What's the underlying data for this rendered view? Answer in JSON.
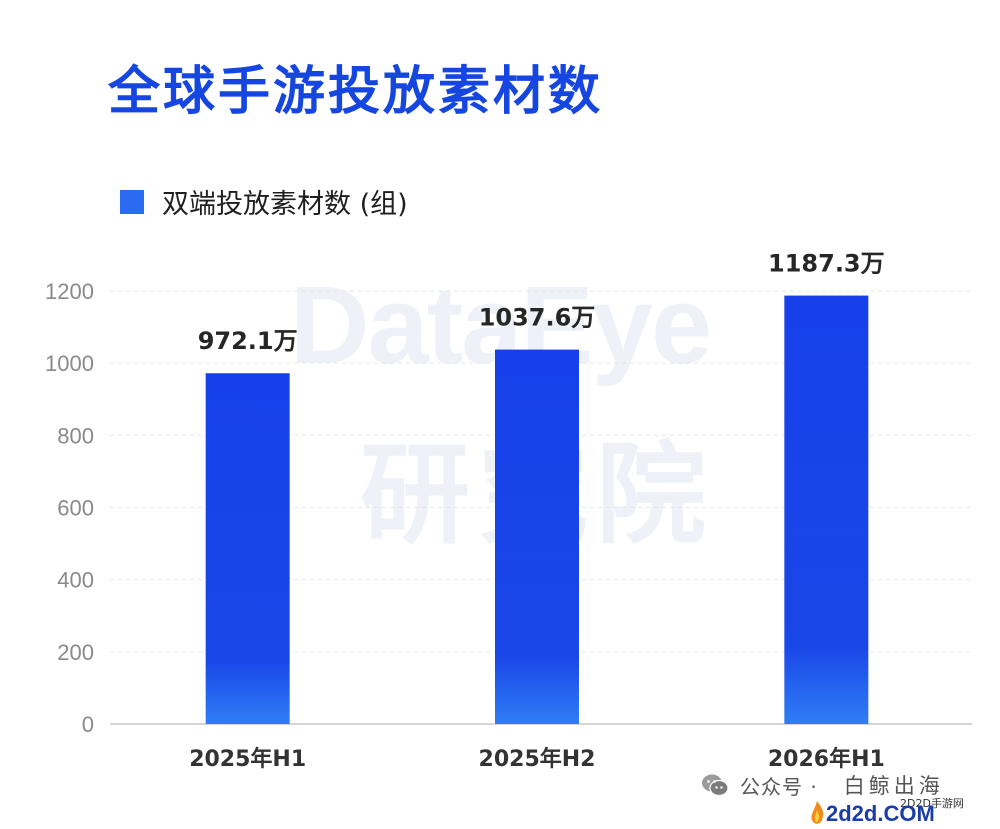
{
  "title": "全球手游投放素材数",
  "watermark": {
    "en": "DataEye",
    "cn": "研究院"
  },
  "footer": {
    "source_label": "公众号 ·",
    "brand": "白鲸出海",
    "site_name": "2D2D手游网",
    "site_logo": "2d2d.COM"
  },
  "chart_data": {
    "type": "bar",
    "title": "全球手游投放素材数",
    "categories": [
      "2025年H1",
      "2025年H2",
      "2026年H1"
    ],
    "series": [
      {
        "name": "双端投放素材数 (组)",
        "values": [
          972.1,
          1037.6,
          1187.3
        ],
        "color": "#1a47e8"
      }
    ],
    "data_labels": [
      "972.1万",
      "1037.6万",
      "1187.3万"
    ],
    "yticks": [
      "0",
      "200",
      "400",
      "600",
      "800",
      "1000",
      "1200"
    ],
    "ylim": [
      0,
      1200
    ],
    "grid": true,
    "legend": "top-left"
  }
}
